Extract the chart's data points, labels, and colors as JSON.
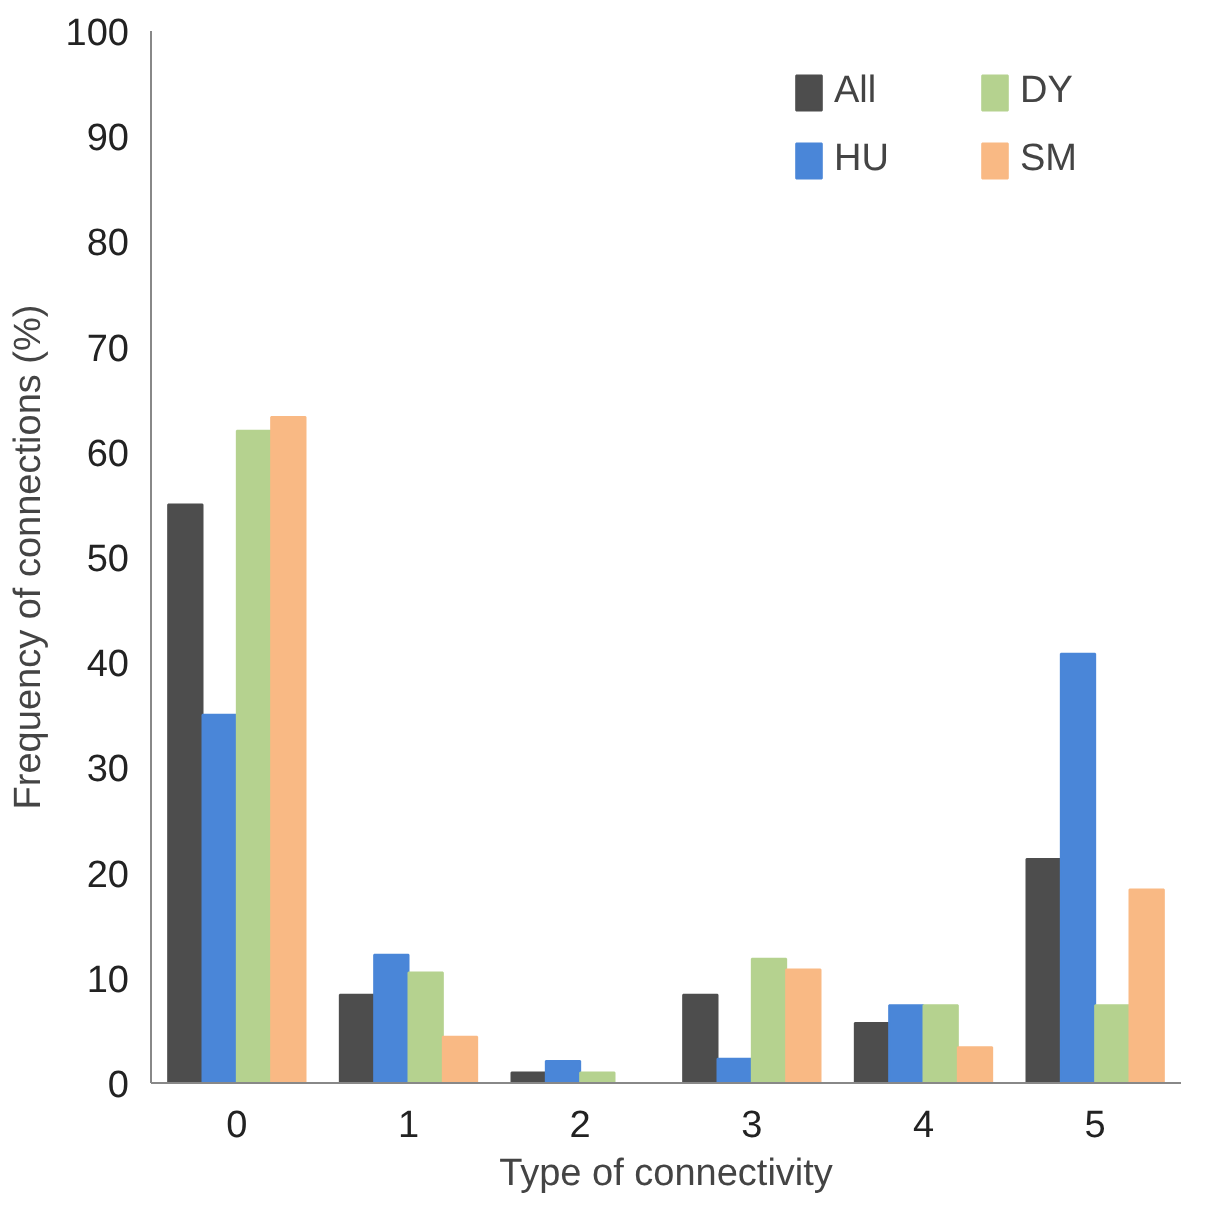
{
  "chart_data": {
    "type": "bar",
    "xlabel": "Type of connectivity",
    "ylabel": "Frequency of connections (%)",
    "categories": [
      "0",
      "1",
      "2",
      "3",
      "4",
      "5"
    ],
    "series": [
      {
        "name": "All",
        "color": "#4d4d4d",
        "values": [
          55,
          8.4,
          1,
          8.4,
          5.7,
          21.3
        ]
      },
      {
        "name": "HU",
        "color": "#4a86d8",
        "values": [
          35,
          12.2,
          2.1,
          2.3,
          7.4,
          40.8
        ]
      },
      {
        "name": "DY",
        "color": "#b5d28f",
        "values": [
          62,
          10.5,
          1,
          11.8,
          7.4,
          7.4
        ]
      },
      {
        "name": "SM",
        "color": "#f9b984",
        "values": [
          63.3,
          4.4,
          0,
          10.8,
          3.4,
          18.4
        ]
      }
    ],
    "ylim": [
      0,
      100
    ],
    "yticks": [
      0,
      10,
      20,
      30,
      40,
      50,
      60,
      70,
      80,
      90,
      100
    ],
    "grid": false,
    "legend": "top right"
  }
}
